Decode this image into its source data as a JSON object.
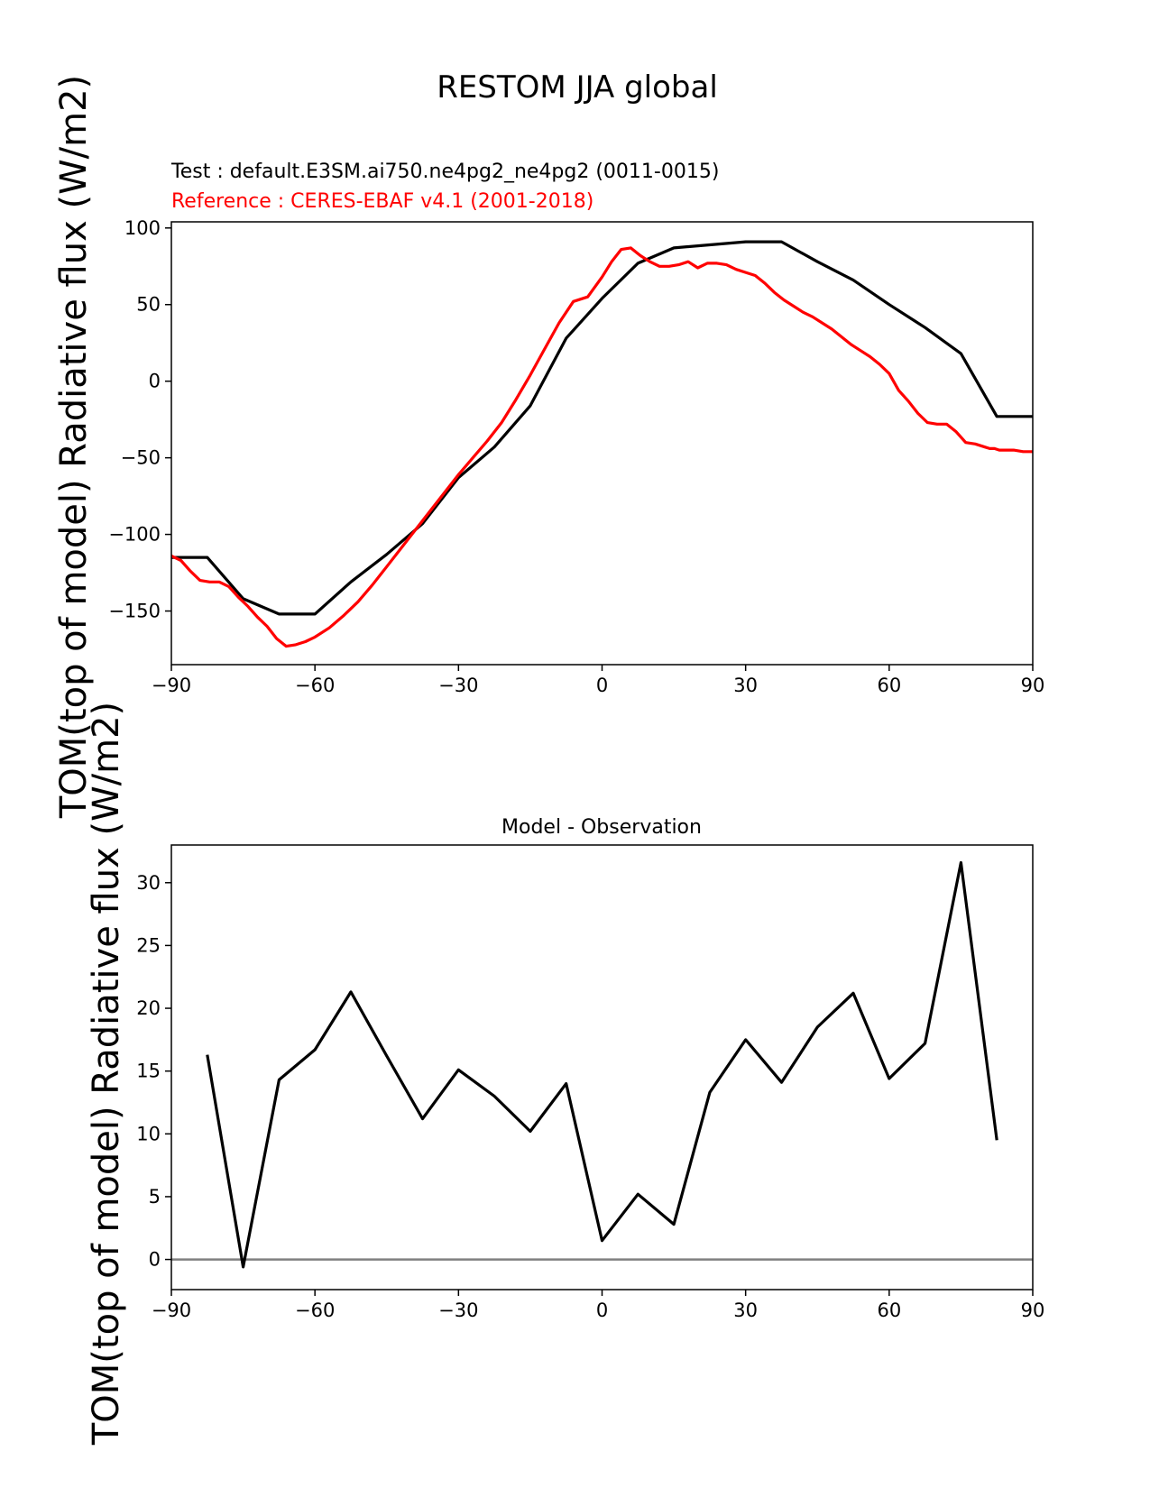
{
  "figure": {
    "suptitle": "RESTOM JJA global"
  },
  "chart_data": [
    {
      "type": "line",
      "title_test": "Test : default.E3SM.ai750.ne4pg2_ne4pg2 (0011-0015)",
      "title_reference": "Reference : CERES-EBAF v4.1 (2001-2018)",
      "title": "",
      "xlabel": "",
      "ylabel": "TOM(top of model) Radiative flux (W/m2)",
      "xlim": [
        -90,
        90
      ],
      "ylim": [
        -185,
        104
      ],
      "xticks": [
        -90,
        -60,
        -30,
        0,
        30,
        60,
        90
      ],
      "yticks": [
        -150,
        -100,
        -50,
        0,
        50,
        100
      ],
      "grid": false,
      "colors": {
        "test": "#000000",
        "reference": "#ff0000"
      },
      "series": [
        {
          "x": [
            -90,
            -82.5,
            -75,
            -67.5,
            -60,
            -52.5,
            -45,
            -37.5,
            -30,
            -22.5,
            -15,
            -7.5,
            0,
            7.5,
            15,
            22.5,
            30,
            37.5,
            45,
            52.5,
            60,
            67.5,
            75,
            82.5,
            90
          ],
          "y": [
            -115,
            -115,
            -142,
            -152,
            -152,
            -131,
            -113,
            -93,
            -63,
            -43,
            -16,
            28,
            54,
            77,
            87,
            89,
            91,
            91,
            78,
            66,
            50,
            35,
            18,
            -23,
            -23
          ]
        },
        {
          "x": [
            -90,
            -88,
            -86,
            -84,
            -82,
            -80,
            -78,
            -76,
            -74,
            -72,
            -70,
            -68,
            -66,
            -64,
            -62,
            -60,
            -57,
            -54,
            -51,
            -48,
            -45,
            -42,
            -39,
            -36,
            -33,
            -30,
            -27,
            -24,
            -21,
            -18,
            -15,
            -12,
            -9,
            -6,
            -3,
            0,
            2,
            4,
            6,
            8,
            10,
            12,
            14,
            16,
            18,
            20,
            22,
            24,
            26,
            28,
            30,
            32,
            34,
            36,
            38,
            40,
            42,
            44,
            46,
            48,
            50,
            52,
            54,
            56,
            58,
            60,
            62,
            64,
            66,
            68,
            70,
            72,
            74,
            76,
            78,
            80,
            81,
            82,
            83,
            84,
            86,
            88,
            90
          ],
          "y": [
            -114,
            -117,
            -124,
            -130,
            -131,
            -131,
            -134,
            -141,
            -147,
            -154,
            -160,
            -168,
            -173,
            -172,
            -170,
            -167,
            -161,
            -153,
            -144,
            -133,
            -121,
            -109,
            -97,
            -85,
            -73,
            -61,
            -50,
            -39,
            -27,
            -12,
            4,
            21,
            38,
            52,
            55,
            68,
            78,
            86,
            87,
            82,
            78,
            75,
            75,
            76,
            78,
            74,
            77,
            77,
            76,
            73,
            71,
            69,
            64,
            58,
            53,
            49,
            45,
            42,
            38,
            34,
            29,
            24,
            20,
            16,
            11,
            5,
            -6,
            -13,
            -21,
            -27,
            -28,
            -28,
            -33,
            -40,
            -41,
            -43,
            -44,
            -44,
            -45,
            -45,
            -45,
            -46,
            -46
          ]
        }
      ]
    },
    {
      "type": "line",
      "title": "Model - Observation",
      "xlabel": "",
      "ylabel": "TOM(top of model) Radiative flux (W/m2)",
      "xlim": [
        -90,
        90
      ],
      "ylim": [
        -2.4,
        33
      ],
      "xticks": [
        -90,
        -60,
        -30,
        0,
        30,
        60,
        90
      ],
      "yticks": [
        0,
        5,
        10,
        15,
        20,
        25,
        30
      ],
      "grid": false,
      "zero_line_color": "#808080",
      "series": [
        {
          "x": [
            -82.5,
            -75,
            -67.5,
            -60,
            -52.5,
            -45,
            -37.5,
            -30,
            -22.5,
            -15,
            -7.5,
            0,
            7.5,
            15,
            22.5,
            30,
            37.5,
            45,
            52.5,
            60,
            67.5,
            75,
            82.5
          ],
          "y": [
            16.3,
            -0.6,
            14.3,
            16.7,
            21.3,
            16.2,
            11.2,
            15.1,
            13.0,
            10.2,
            14.0,
            1.5,
            5.2,
            2.8,
            13.3,
            17.5,
            14.1,
            18.5,
            21.2,
            14.4,
            17.2,
            31.6,
            9.5
          ]
        }
      ]
    }
  ]
}
